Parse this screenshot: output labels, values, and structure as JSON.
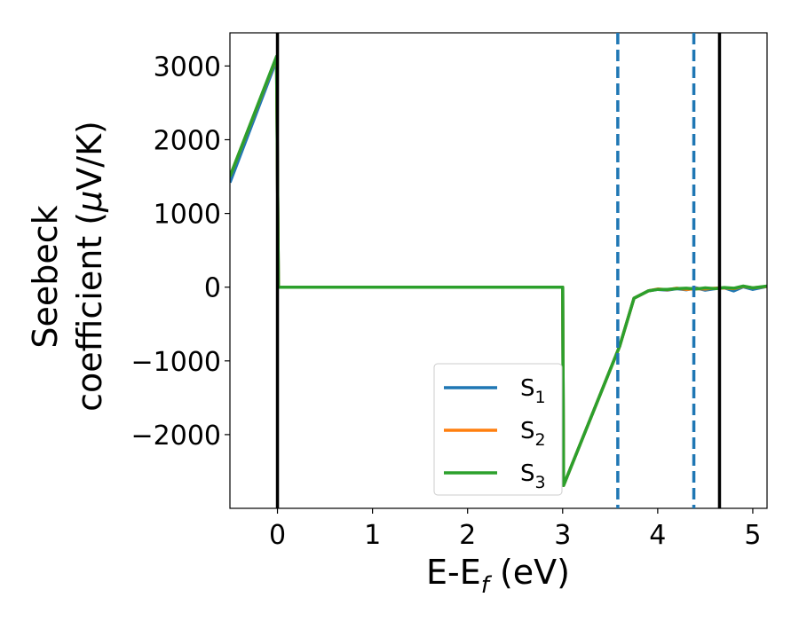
{
  "chart_data": {
    "type": "line",
    "xlabel": "E-E",
    "xlabel_sub": "f",
    "xlabel_unit": " (eV)",
    "ylabel_line1": "Seebeck",
    "ylabel_line2": "coefficient  (",
    "ylabel_mu": "μ",
    "ylabel_unit_rest": "V/K)",
    "xlim": [
      -0.5,
      5.15
    ],
    "ylim": [
      -3000,
      3450
    ],
    "xticks": [
      0,
      1,
      2,
      3,
      4,
      5
    ],
    "xtick_labels": [
      "0",
      "1",
      "2",
      "3",
      "4",
      "5"
    ],
    "yticks": [
      3000,
      2000,
      1000,
      0,
      -1000,
      -2000
    ],
    "ytick_labels": [
      "3000",
      "2000",
      "1000",
      "0",
      "−1000",
      "−2000"
    ],
    "grid": false,
    "legend_position": "lower-right",
    "vertical_lines": [
      {
        "x": 0,
        "style": "solid",
        "color": "#000000"
      },
      {
        "x": 3.58,
        "style": "dashed",
        "color": "#1f77b4"
      },
      {
        "x": 4.38,
        "style": "dashed",
        "color": "#1f77b4"
      },
      {
        "x": 4.65,
        "style": "solid",
        "color": "#000000"
      }
    ],
    "series": [
      {
        "name": "S",
        "sub": "1",
        "color": "#1f77b4",
        "x": [
          -0.5,
          -0.01,
          0.01,
          3.0,
          3.01,
          3.6,
          3.75,
          3.9,
          4.0,
          4.1,
          4.2,
          4.3,
          4.4,
          4.5,
          4.6,
          4.7,
          4.8,
          4.9,
          5.0,
          5.15
        ],
        "y": [
          1420,
          3080,
          0,
          0,
          -2690,
          -800,
          -150,
          -50,
          -30,
          -40,
          -20,
          -35,
          -10,
          -40,
          -20,
          -10,
          -50,
          5,
          -30,
          10
        ]
      },
      {
        "name": "S",
        "sub": "2",
        "color": "#ff7f0e",
        "x": [
          -0.5,
          -0.01,
          0.01,
          3.0,
          3.01,
          3.6,
          3.75,
          3.9,
          4.0,
          4.1,
          4.2,
          4.3,
          4.4,
          4.5,
          4.6,
          4.7,
          4.8,
          4.9,
          5.0,
          5.15
        ],
        "y": [
          1500,
          3120,
          0,
          0,
          -2690,
          -800,
          -150,
          -50,
          -25,
          -35,
          -15,
          -30,
          -20,
          -25,
          -15,
          -10,
          -20,
          10,
          -10,
          10
        ]
      },
      {
        "name": "S",
        "sub": "3",
        "color": "#2ca02c",
        "x": [
          -0.5,
          -0.01,
          0.01,
          3.0,
          3.01,
          3.6,
          3.75,
          3.9,
          4.0,
          4.1,
          4.2,
          4.3,
          4.4,
          4.5,
          4.6,
          4.7,
          4.8,
          4.9,
          5.0,
          5.15
        ],
        "y": [
          1500,
          3130,
          0,
          0,
          -2690,
          -800,
          -150,
          -50,
          -30,
          -30,
          -20,
          -15,
          -25,
          -10,
          -20,
          -5,
          -15,
          15,
          -10,
          15
        ]
      }
    ]
  }
}
